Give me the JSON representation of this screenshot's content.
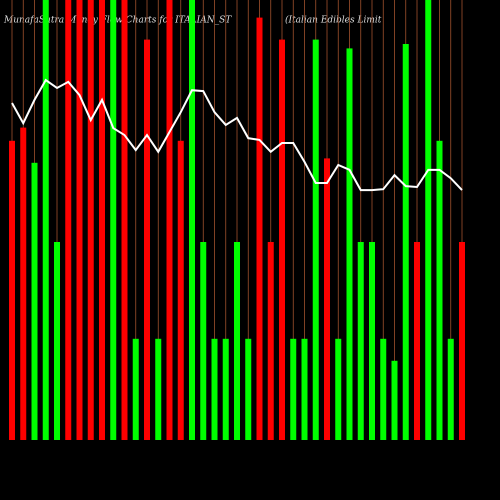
{
  "chart_data": {
    "type": "bar",
    "title": "MunafaSutra Money Flow Charts for ITALIAN_ST",
    "subtitle": "(Italian  Edibles Limit",
    "categories": [
      null,
      null,
      null,
      null,
      null,
      null,
      null,
      null,
      null,
      null,
      null,
      null,
      null,
      null,
      null,
      null,
      null,
      null,
      null,
      null,
      null,
      null,
      null,
      null,
      null,
      null,
      null,
      null,
      null,
      null,
      null,
      null,
      null,
      null,
      null,
      null,
      null,
      null,
      null,
      null,
      null
    ],
    "ylim": [
      0,
      100
    ],
    "guide_color": "#a0522d",
    "series": [
      {
        "type": "bar",
        "values": [
          68,
          71,
          63,
          100,
          45,
          100,
          100,
          100,
          100,
          100,
          100,
          23,
          91,
          23,
          100,
          68,
          100,
          45,
          23,
          23,
          45,
          23,
          96,
          45,
          91,
          23,
          23,
          91,
          64,
          23,
          89,
          45,
          45,
          23,
          18,
          90,
          45,
          100,
          68,
          23,
          45
        ],
        "colors": [
          "#ff0000",
          "#ff0000",
          "#00ff00",
          "#00ff00",
          "#00ff00",
          "#ff0000",
          "#ff0000",
          "#ff0000",
          "#ff0000",
          "#00ff00",
          "#ff0000",
          "#00ff00",
          "#ff0000",
          "#00ff00",
          "#ff0000",
          "#ff0000",
          "#00ff00",
          "#00ff00",
          "#00ff00",
          "#00ff00",
          "#00ff00",
          "#00ff00",
          "#ff0000",
          "#ff0000",
          "#ff0000",
          "#00ff00",
          "#00ff00",
          "#00ff00",
          "#ff0000",
          "#00ff00",
          "#00ff00",
          "#00ff00",
          "#00ff00",
          "#00ff00",
          "#00ff00",
          "#00ff00",
          "#ff0000",
          "#00ff00",
          "#00ff00",
          "#00ff00",
          "#ff0000"
        ]
      },
      {
        "type": "line",
        "color": "#ffffff",
        "values": [
          76.6,
          72,
          77.3,
          81.8,
          80,
          81.4,
          78.4,
          72.7,
          77.3,
          70.9,
          69.3,
          65.9,
          69.3,
          65.5,
          70,
          74.5,
          79.5,
          79.3,
          74.5,
          71.6,
          73.2,
          68.6,
          68.2,
          65.5,
          67.5,
          67.5,
          63.2,
          58.4,
          58.4,
          62.5,
          61.4,
          56.8,
          56.8,
          57,
          60.2,
          57.7,
          57.5,
          61.4,
          61.4,
          59.5,
          56.8
        ]
      }
    ]
  }
}
